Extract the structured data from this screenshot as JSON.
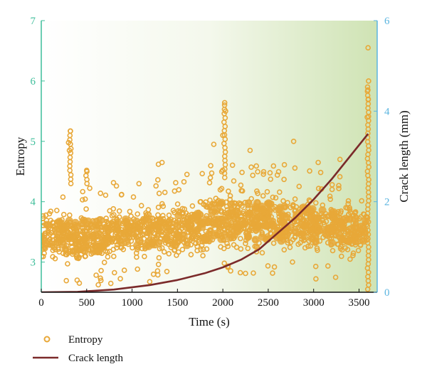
{
  "chart_data": {
    "type": "scatter",
    "xlabel": "Time (s)",
    "ylabel_left": "Entropy",
    "ylabel_right": "Crack length (mm)",
    "xlim": [
      0,
      3700
    ],
    "ylim_left": [
      2.5,
      7
    ],
    "ylim_right": [
      0,
      6
    ],
    "xticks": [
      "0",
      "500",
      "1000",
      "1500",
      "2000",
      "2500",
      "3000",
      "3500"
    ],
    "yticks_left": [
      "3",
      "4",
      "5",
      "6",
      "7"
    ],
    "yticks_right": [
      "0",
      "2",
      "4",
      "6"
    ],
    "grid": false,
    "legend_position": "bottom-left, below plot",
    "series": [
      {
        "name": "Entropy",
        "kind": "scatter",
        "axis": "left",
        "color": "#E8A838",
        "band": {
          "x": [
            0,
            500,
            1000,
            1500,
            1800,
            2000,
            2500,
            3000,
            3500,
            3600
          ],
          "low": [
            2.9,
            2.9,
            2.95,
            3.0,
            3.0,
            3.05,
            3.05,
            3.0,
            3.0,
            2.9
          ],
          "high": [
            3.95,
            3.95,
            4.0,
            4.05,
            4.2,
            4.35,
            4.3,
            4.2,
            4.1,
            4.3
          ]
        },
        "outliers": [
          {
            "x": 320,
            "y": 5.17
          },
          {
            "x": 300,
            "y": 4.98
          },
          {
            "x": 310,
            "y": 4.85
          },
          {
            "x": 500,
            "y": 4.52
          },
          {
            "x": 1290,
            "y": 4.62
          },
          {
            "x": 1330,
            "y": 4.65
          },
          {
            "x": 1900,
            "y": 4.95
          },
          {
            "x": 2020,
            "y": 5.64
          },
          {
            "x": 2030,
            "y": 5.5
          },
          {
            "x": 2000,
            "y": 5.1
          },
          {
            "x": 2300,
            "y": 4.85
          },
          {
            "x": 2780,
            "y": 5.0
          },
          {
            "x": 3050,
            "y": 4.65
          },
          {
            "x": 3290,
            "y": 4.7
          },
          {
            "x": 3600,
            "y": 6.55
          },
          {
            "x": 3605,
            "y": 6.0
          },
          {
            "x": 3598,
            "y": 5.85
          },
          {
            "x": 3602,
            "y": 5.7
          },
          {
            "x": 3590,
            "y": 5.4
          }
        ],
        "spike_columns": [
          {
            "x": 320,
            "y_min": 4.3,
            "y_max": 5.17
          },
          {
            "x": 500,
            "y_min": 4.3,
            "y_max": 4.5
          },
          {
            "x": 2020,
            "y_min": 4.4,
            "y_max": 5.6
          },
          {
            "x": 3600,
            "y_min": 2.55,
            "y_max": 5.9
          }
        ]
      },
      {
        "name": "Crack length",
        "kind": "line",
        "axis": "right",
        "color": "#7B2A2A",
        "x": [
          0,
          400,
          800,
          1200,
          1500,
          1800,
          2000,
          2200,
          2400,
          2600,
          2800,
          3000,
          3200,
          3400,
          3600
        ],
        "y": [
          0,
          0.01,
          0.06,
          0.16,
          0.27,
          0.42,
          0.55,
          0.72,
          0.95,
          1.3,
          1.65,
          2.05,
          2.5,
          3.0,
          3.5
        ]
      }
    ]
  },
  "legend": {
    "entropy_label": "Entropy",
    "crack_label": "Crack length"
  },
  "colors": {
    "left_axis": "#3DBE9A",
    "right_axis": "#5BB5E0",
    "bg_start": "#ffffff",
    "bg_end": "#cfe3b4"
  }
}
